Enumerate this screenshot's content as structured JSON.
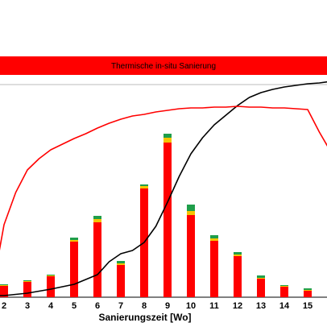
{
  "chart_data": {
    "type": "bar",
    "phase_label": "Thermische in-situ Sanierung",
    "xlabel": "Sanierungszeit [Wo]",
    "categories": [
      "2",
      "3",
      "4",
      "5",
      "6",
      "7",
      "8",
      "9",
      "10",
      "11",
      "12",
      "13",
      "14",
      "15"
    ],
    "bar_stack": [
      {
        "name": "red",
        "color": "#ff0000",
        "values": [
          14,
          19,
          26,
          69,
          93,
          40,
          135,
          192,
          102,
          70,
          51,
          23,
          13,
          8
        ]
      },
      {
        "name": "yellow",
        "color": "#f5c400",
        "values": [
          1,
          1,
          1,
          2,
          4,
          2,
          3,
          6,
          5,
          3,
          2,
          1,
          1,
          1
        ]
      },
      {
        "name": "green",
        "color": "#1f9e4a",
        "values": [
          1,
          1,
          1,
          3,
          4,
          3,
          2,
          5,
          8,
          4,
          3,
          3,
          1,
          2
        ]
      }
    ],
    "line_series": [
      {
        "name": "black",
        "color": "#000000",
        "x": [
          1.8,
          2.0,
          3.0,
          4.0,
          5.0,
          6.0,
          6.5,
          7.0,
          7.5,
          8.0,
          8.5,
          9.0,
          9.5,
          10.0,
          10.5,
          11.0,
          11.5,
          12.0,
          12.5,
          13.0,
          13.5,
          14.0,
          14.5,
          15.0,
          15.5,
          16.0,
          16.2
        ],
        "y": [
          2,
          2,
          5,
          10,
          16,
          28,
          44,
          54,
          58,
          68,
          88,
          118,
          150,
          178,
          198,
          214,
          226,
          238,
          248,
          254,
          258,
          261,
          263,
          265,
          266,
          268,
          268
        ]
      },
      {
        "name": "red",
        "color": "#ff0000",
        "x": [
          1.8,
          2.0,
          2.5,
          3.0,
          3.5,
          4.0,
          4.5,
          5.0,
          5.5,
          6.0,
          6.5,
          7.0,
          7.5,
          8.0,
          8.5,
          9.0,
          9.5,
          10.0,
          10.5,
          11.0,
          11.5,
          12.0,
          12.5,
          13.0,
          13.5,
          14.0,
          14.5,
          15.0,
          15.5,
          16.0,
          16.2
        ],
        "y": [
          58,
          90,
          130,
          158,
          172,
          183,
          190,
          197,
          203,
          210,
          216,
          221,
          225,
          227,
          230,
          232,
          234,
          235,
          235,
          236,
          236,
          237,
          236,
          236,
          235,
          235,
          234,
          233,
          205,
          180,
          175
        ]
      }
    ],
    "xlim": [
      1.8,
      16.2
    ],
    "ylim": [
      0,
      290
    ],
    "grid": false,
    "legend": "none"
  }
}
